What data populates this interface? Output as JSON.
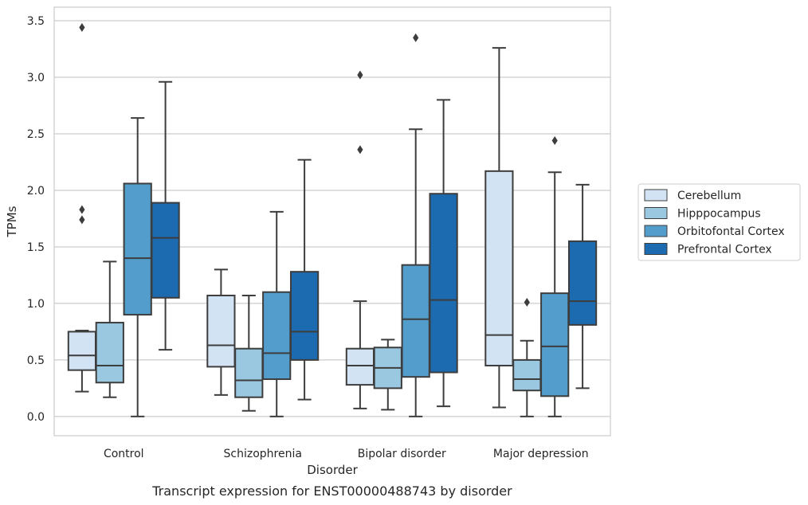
{
  "caption": "Transcript expression for ENST00000488743 by disorder",
  "chart_data": {
    "type": "box",
    "xlabel": "Disorder",
    "ylabel": "TPMs",
    "ylim": [
      -0.17,
      3.62
    ],
    "yticks": [
      "0.0",
      "0.5",
      "1.0",
      "1.5",
      "2.0",
      "2.5",
      "3.0",
      "3.5"
    ],
    "grid": "horizontal",
    "legend_position": "right",
    "categories": [
      "Control",
      "Schizophrenia",
      "Bipolar disorder",
      "Major depression"
    ],
    "series": [
      {
        "name": "Cerebellum",
        "color": "#d2e3f3",
        "boxes": [
          {
            "whisker_low": 0.22,
            "q1": 0.41,
            "median": 0.54,
            "q3": 0.75,
            "whisker_high": 0.76,
            "outliers": [
              1.74,
              1.83,
              3.44
            ]
          },
          {
            "whisker_low": 0.19,
            "q1": 0.44,
            "median": 0.63,
            "q3": 1.07,
            "whisker_high": 1.3,
            "outliers": []
          },
          {
            "whisker_low": 0.07,
            "q1": 0.28,
            "median": 0.45,
            "q3": 0.6,
            "whisker_high": 1.02,
            "outliers": [
              2.36,
              3.02
            ]
          },
          {
            "whisker_low": 0.08,
            "q1": 0.45,
            "median": 0.72,
            "q3": 2.17,
            "whisker_high": 3.26,
            "outliers": []
          }
        ]
      },
      {
        "name": "Hipppocampus",
        "color": "#9ac8e0",
        "boxes": [
          {
            "whisker_low": 0.17,
            "q1": 0.3,
            "median": 0.45,
            "q3": 0.83,
            "whisker_high": 1.37,
            "outliers": []
          },
          {
            "whisker_low": 0.05,
            "q1": 0.17,
            "median": 0.32,
            "q3": 0.6,
            "whisker_high": 1.07,
            "outliers": []
          },
          {
            "whisker_low": 0.06,
            "q1": 0.25,
            "median": 0.43,
            "q3": 0.61,
            "whisker_high": 0.68,
            "outliers": []
          },
          {
            "whisker_low": 0.0,
            "q1": 0.23,
            "median": 0.33,
            "q3": 0.5,
            "whisker_high": 0.67,
            "outliers": [
              1.01
            ]
          }
        ]
      },
      {
        "name": "Orbitofontal Cortex",
        "color": "#529dcc",
        "boxes": [
          {
            "whisker_low": 0.0,
            "q1": 0.9,
            "median": 1.4,
            "q3": 2.06,
            "whisker_high": 2.64,
            "outliers": []
          },
          {
            "whisker_low": 0.0,
            "q1": 0.33,
            "median": 0.56,
            "q3": 1.1,
            "whisker_high": 1.81,
            "outliers": []
          },
          {
            "whisker_low": 0.0,
            "q1": 0.35,
            "median": 0.86,
            "q3": 1.34,
            "whisker_high": 2.54,
            "outliers": [
              3.35
            ]
          },
          {
            "whisker_low": 0.0,
            "q1": 0.18,
            "median": 0.62,
            "q3": 1.09,
            "whisker_high": 2.16,
            "outliers": [
              2.44
            ]
          }
        ]
      },
      {
        "name": "Prefrontal Cortex",
        "color": "#1c6aaf",
        "boxes": [
          {
            "whisker_low": 0.59,
            "q1": 1.05,
            "median": 1.58,
            "q3": 1.89,
            "whisker_high": 2.96,
            "outliers": []
          },
          {
            "whisker_low": 0.15,
            "q1": 0.5,
            "median": 0.75,
            "q3": 1.28,
            "whisker_high": 2.27,
            "outliers": []
          },
          {
            "whisker_low": 0.09,
            "q1": 0.39,
            "median": 1.03,
            "q3": 1.97,
            "whisker_high": 2.8,
            "outliers": []
          },
          {
            "whisker_low": 0.25,
            "q1": 0.81,
            "median": 1.02,
            "q3": 1.55,
            "whisker_high": 2.05,
            "outliers": []
          }
        ]
      }
    ]
  }
}
